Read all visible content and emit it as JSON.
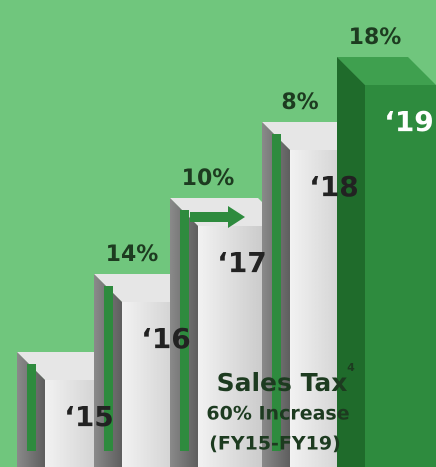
{
  "chart_data": {
    "type": "steps",
    "categories": [
      "‘15",
      "‘16",
      "‘17",
      "‘18",
      "‘19"
    ],
    "values": [
      null,
      14,
      10,
      8,
      18
    ],
    "value_labels": [
      null,
      "14%",
      "10%",
      "8%",
      "18%"
    ],
    "color": "#2e8b3e",
    "annotation": {
      "title": "Sales Tax",
      "note": "4",
      "line1": "60% Increase",
      "line2": "(FY15-FY19)"
    }
  }
}
